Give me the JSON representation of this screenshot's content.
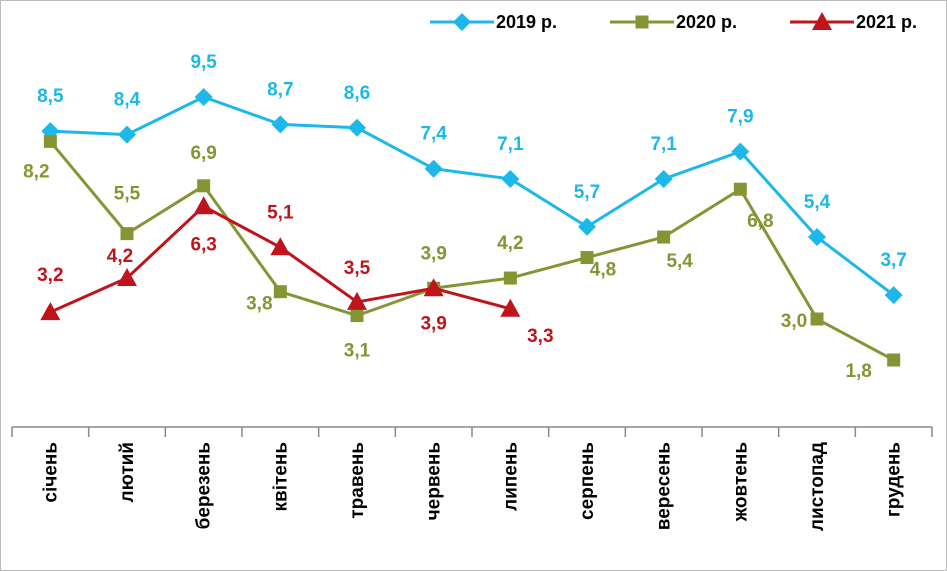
{
  "chart_data": {
    "type": "line",
    "categories": [
      "січень",
      "лютий",
      "березень",
      "квітень",
      "травень",
      "червень",
      "липень",
      "серпень",
      "вересень",
      "жовтень",
      "листопад",
      "грудень"
    ],
    "series": [
      {
        "name": "2019 р.",
        "color": "#1cb8ea",
        "marker": "diamond",
        "values": [
          8.5,
          8.4,
          9.5,
          8.7,
          8.6,
          7.4,
          7.1,
          5.7,
          7.1,
          7.9,
          5.4,
          3.7
        ],
        "value_labels": [
          "8,5",
          "8,4",
          "9,5",
          "8,7",
          "8,6",
          "7,4",
          "7,1",
          "5,7",
          "7,1",
          "7,9",
          "5,4",
          "3,7"
        ]
      },
      {
        "name": "2020 р.",
        "color": "#849534",
        "marker": "square",
        "values": [
          8.2,
          5.5,
          6.9,
          3.8,
          3.1,
          3.9,
          4.2,
          4.8,
          5.4,
          6.8,
          3.0,
          1.8
        ],
        "value_labels": [
          "8,2",
          "5,5",
          "6,9",
          "3,8",
          "3,1",
          "3,9",
          "4,2",
          "4,8",
          "5,4",
          "6,8",
          "3,0",
          "1,8"
        ]
      },
      {
        "name": "2021 р.",
        "color": "#c0141c",
        "marker": "triangle",
        "values": [
          3.2,
          4.2,
          6.3,
          5.1,
          3.5,
          3.9,
          3.3,
          null,
          null,
          null,
          null,
          null
        ],
        "value_labels": [
          "3,2",
          "4,2",
          "6,3",
          "5,1",
          "3,5",
          "3,9",
          "3,3",
          null,
          null,
          null,
          null,
          null
        ]
      }
    ]
  }
}
